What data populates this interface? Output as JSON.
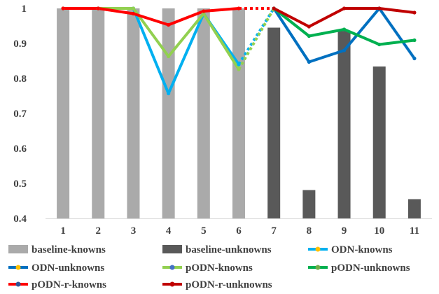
{
  "chart_data": {
    "type": "bar",
    "title": "",
    "xlabel": "",
    "ylabel": "",
    "categories": [
      "1",
      "2",
      "3",
      "4",
      "5",
      "6",
      "7",
      "8",
      "9",
      "10",
      "11"
    ],
    "ylim": [
      0.4,
      1.0
    ],
    "yticks": [
      "0.4",
      "0.5",
      "0.6",
      "0.7",
      "0.8",
      "0.9",
      "1"
    ],
    "grid": false,
    "legend_position": "bottom",
    "series": [
      {
        "name": "baseline-knowns",
        "kind": "bar",
        "color": "#aaaaaa",
        "legend_marker": "#aaaaaa",
        "values": [
          1.0,
          1.0,
          1.0,
          1.0,
          1.0,
          1.0,
          null,
          null,
          null,
          null,
          null
        ]
      },
      {
        "name": "baseline-unknowns",
        "kind": "bar",
        "color": "#595959",
        "legend_marker": "#595959",
        "values": [
          null,
          null,
          null,
          null,
          null,
          null,
          0.945,
          0.481,
          0.935,
          0.834,
          0.455
        ]
      },
      {
        "name": "ODN-knowns",
        "kind": "line",
        "color": "#00b0f0",
        "legend_marker": "#ffc000",
        "values": [
          1.0,
          1.0,
          1.0,
          0.757,
          0.985,
          0.84,
          null,
          null,
          null,
          null,
          null
        ]
      },
      {
        "name": "ODN-unknowns",
        "kind": "line",
        "color": "#0070c0",
        "legend_marker": "#ffc000",
        "values": [
          null,
          null,
          null,
          null,
          null,
          null,
          1.0,
          0.847,
          0.88,
          1.0,
          0.857
        ]
      },
      {
        "name": "pODN-knowns",
        "kind": "line",
        "color": "#92d050",
        "legend_marker": "#4472c4",
        "values": [
          1.0,
          1.0,
          1.0,
          0.863,
          0.985,
          0.826,
          null,
          null,
          null,
          null,
          null
        ]
      },
      {
        "name": "pODN-unknowns",
        "kind": "line",
        "color": "#00b050",
        "legend_marker": "#70ad47",
        "values": [
          null,
          null,
          null,
          null,
          null,
          null,
          1.0,
          0.921,
          0.94,
          0.897,
          0.909
        ]
      },
      {
        "name": "pODN-r-knowns",
        "kind": "line",
        "color": "#ff0000",
        "legend_marker": "#2f5597",
        "values": [
          1.0,
          1.0,
          0.985,
          0.953,
          0.992,
          1.0,
          null,
          null,
          null,
          null,
          null
        ]
      },
      {
        "name": "pODN-r-unknowns",
        "kind": "line",
        "color": "#c00000",
        "legend_marker": "#c00000",
        "values": [
          null,
          null,
          null,
          null,
          null,
          null,
          1.0,
          0.948,
          1.0,
          1.0,
          0.988
        ]
      }
    ]
  }
}
